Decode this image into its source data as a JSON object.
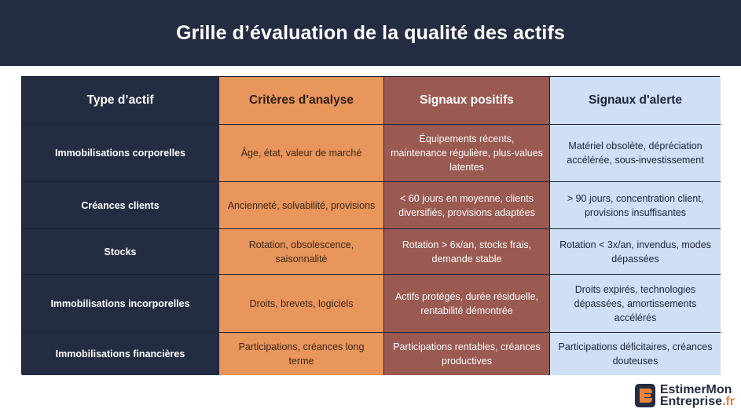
{
  "title": "Grille d’évaluation de la qualité des actifs",
  "table": {
    "headers": [
      "Type d’actif",
      "Critères d'analyse",
      "Signaux positifs",
      "Signaux d'alerte"
    ],
    "rows": [
      [
        "Immobilisations corporelles",
        "Âge, état, valeur de marché",
        "Équipements récents, maintenance régulière, plus-values latentes",
        "Matériel obsolète, dépréciation accélérée, sous-investissement"
      ],
      [
        "Créances clients",
        "Ancienneté, solvabilité, provisions",
        "< 60 jours en moyenne, clients diversifiés, provisions adaptées",
        "> 90 jours, concentration client, provisions insuffisantes"
      ],
      [
        "Stocks",
        "Rotation, obsolescence, saisonnalité",
        "Rotation > 6x/an, stocks frais, demande stable",
        "Rotation < 3x/an, invendus, modes dépassées"
      ],
      [
        "Immobilisations incorporelles",
        "Droits, brevets, logiciels",
        "Actifs protégés, durée résiduelle, rentabilité démontrée",
        "Droits expirés, technologies dépassées, amortissements accélérés"
      ],
      [
        "Immobilisations financières",
        "Participations, créances long terme",
        "Participations rentables, créances productives",
        "Participations déficitaires, créances douteuses"
      ]
    ]
  },
  "colors": {
    "header_bg": "#242c42",
    "col1": "#242c42",
    "col2": "#e8965c",
    "col3": "#9a5951",
    "col4": "#cfdff5",
    "accent": "#e8823c"
  },
  "logo": {
    "line1": "EstimerMon",
    "line2": "Entreprise",
    "tld": ".fr",
    "icon": "brand-logo-icon"
  }
}
